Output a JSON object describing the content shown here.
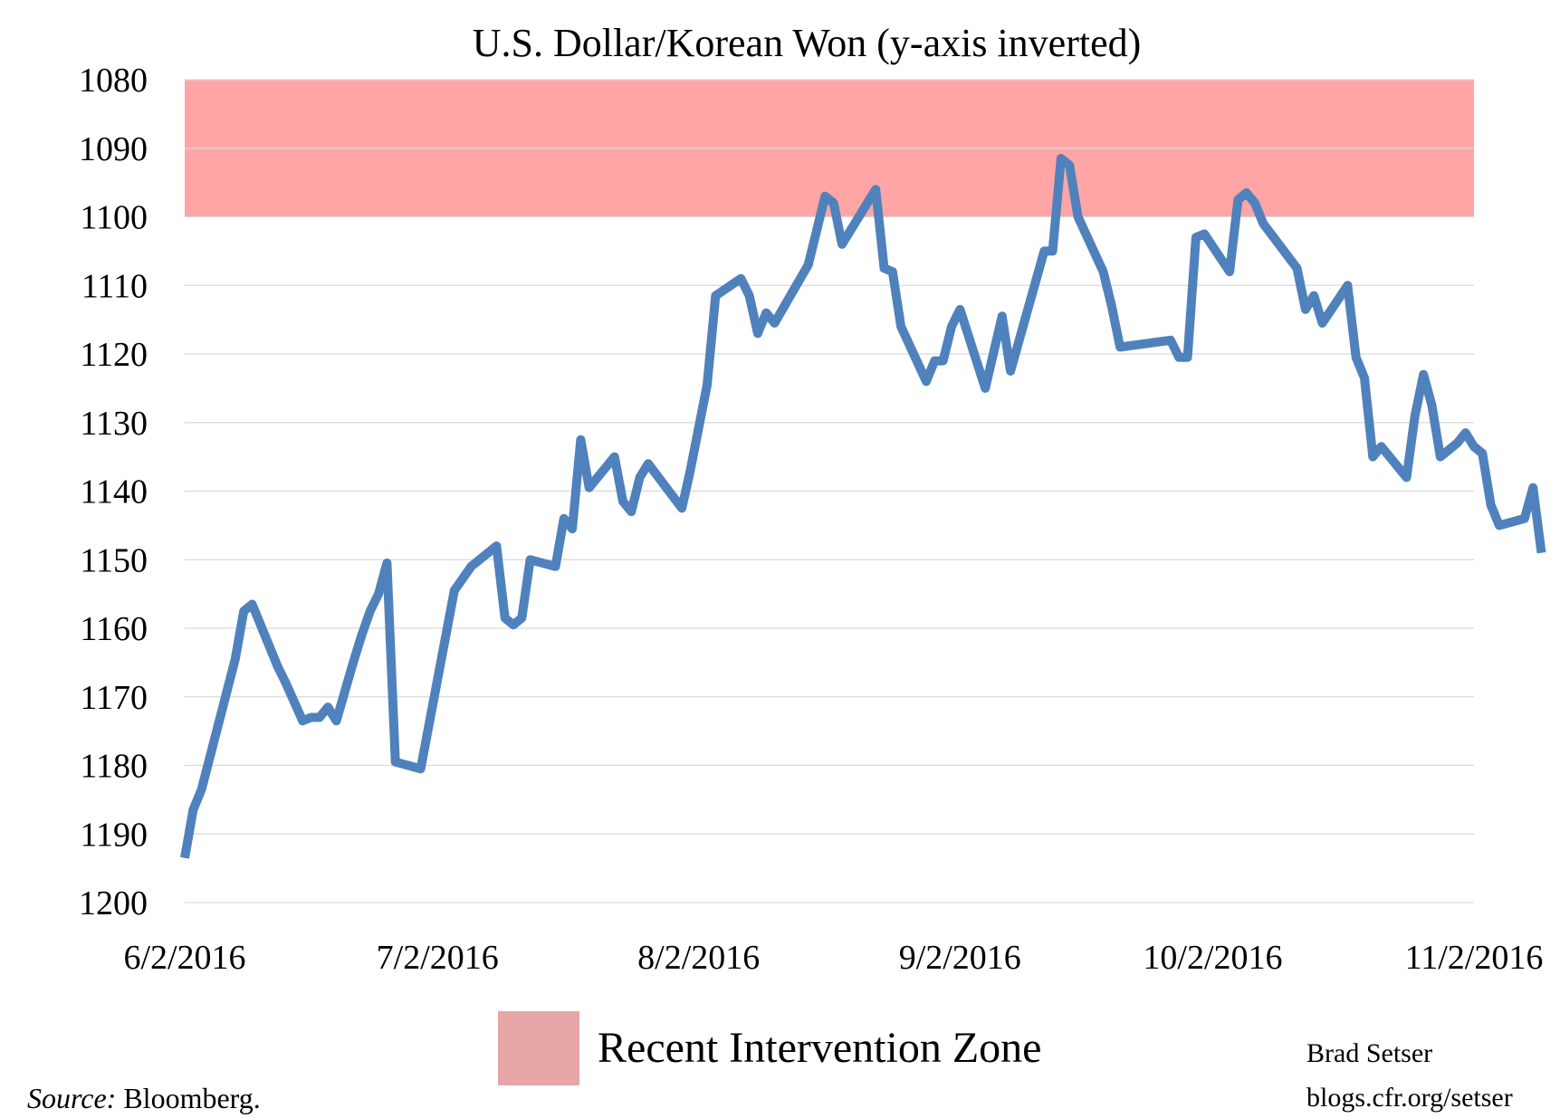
{
  "chart_data": {
    "type": "line",
    "title": "U.S. Dollar/Korean Won (y-axis inverted)",
    "xlabel": "",
    "ylabel": "",
    "y_inverted": true,
    "ylim": [
      1080,
      1200
    ],
    "yticks": [
      1080,
      1090,
      1100,
      1110,
      1120,
      1130,
      1140,
      1150,
      1160,
      1170,
      1180,
      1190,
      1200
    ],
    "xlim": [
      "2016-06-02",
      "2016-11-02"
    ],
    "xticks": [
      {
        "date": "2016-06-02",
        "label": "6/2/2016"
      },
      {
        "date": "2016-07-02",
        "label": "7/2/2016"
      },
      {
        "date": "2016-08-02",
        "label": "8/2/2016"
      },
      {
        "date": "2016-09-02",
        "label": "9/2/2016"
      },
      {
        "date": "2016-10-02",
        "label": "10/2/2016"
      },
      {
        "date": "2016-11-02",
        "label": "11/2/2016"
      }
    ],
    "grid": true,
    "band": {
      "name": "Recent Intervention Zone",
      "from": 1080,
      "to": 1100,
      "color": "#ff9999"
    },
    "series": [
      {
        "color": "#4f81bd",
        "points": [
          [
            "2016-06-02",
            1193.5
          ],
          [
            "2016-06-03",
            1186.5
          ],
          [
            "2016-06-04",
            1183.5
          ],
          [
            "2016-06-08",
            1164.5
          ],
          [
            "2016-06-09",
            1157.5
          ],
          [
            "2016-06-10",
            1156.5
          ],
          [
            "2016-06-13",
            1165.5
          ],
          [
            "2016-06-14",
            1168.0
          ],
          [
            "2016-06-16",
            1173.5
          ],
          [
            "2016-06-17",
            1173.0
          ],
          [
            "2016-06-18",
            1173.0
          ],
          [
            "2016-06-19",
            1171.5
          ],
          [
            "2016-06-20",
            1173.5
          ],
          [
            "2016-06-22",
            1165.0
          ],
          [
            "2016-06-23",
            1161.0
          ],
          [
            "2016-06-24",
            1157.5
          ],
          [
            "2016-06-25",
            1155.0
          ],
          [
            "2016-06-26",
            1150.5
          ],
          [
            "2016-06-27",
            1179.5
          ],
          [
            "2016-06-30",
            1180.5
          ],
          [
            "2016-07-04",
            1154.5
          ],
          [
            "2016-07-06",
            1151.0
          ],
          [
            "2016-07-09",
            1148.0
          ],
          [
            "2016-07-10",
            1158.5
          ],
          [
            "2016-07-11",
            1159.5
          ],
          [
            "2016-07-12",
            1158.5
          ],
          [
            "2016-07-13",
            1150.0
          ],
          [
            "2016-07-16",
            1151.0
          ],
          [
            "2016-07-17",
            1144.0
          ],
          [
            "2016-07-18",
            1145.5
          ],
          [
            "2016-07-19",
            1132.5
          ],
          [
            "2016-07-20",
            1139.5
          ],
          [
            "2016-07-23",
            1135.0
          ],
          [
            "2016-07-24",
            1141.5
          ],
          [
            "2016-07-25",
            1143.0
          ],
          [
            "2016-07-26",
            1138.0
          ],
          [
            "2016-07-27",
            1136.0
          ],
          [
            "2016-07-31",
            1142.5
          ],
          [
            "2016-08-01",
            1137.0
          ],
          [
            "2016-08-03",
            1124.5
          ],
          [
            "2016-08-04",
            1111.5
          ],
          [
            "2016-08-07",
            1109.0
          ],
          [
            "2016-08-08",
            1111.5
          ],
          [
            "2016-08-09",
            1117.0
          ],
          [
            "2016-08-10",
            1114.0
          ],
          [
            "2016-08-11",
            1115.5
          ],
          [
            "2016-08-15",
            1107.0
          ],
          [
            "2016-08-17",
            1097.0
          ],
          [
            "2016-08-18",
            1098.0
          ],
          [
            "2016-08-19",
            1104.0
          ],
          [
            "2016-08-23",
            1096.0
          ],
          [
            "2016-08-24",
            1107.5
          ],
          [
            "2016-08-25",
            1108.0
          ],
          [
            "2016-08-26",
            1116.0
          ],
          [
            "2016-08-29",
            1124.0
          ],
          [
            "2016-08-30",
            1121.0
          ],
          [
            "2016-08-31",
            1121.0
          ],
          [
            "2016-09-01",
            1116.0
          ],
          [
            "2016-09-02",
            1113.5
          ],
          [
            "2016-09-05",
            1125.0
          ],
          [
            "2016-09-07",
            1114.5
          ],
          [
            "2016-09-08",
            1122.5
          ],
          [
            "2016-09-12",
            1105.0
          ],
          [
            "2016-09-13",
            1105.0
          ],
          [
            "2016-09-14",
            1091.5
          ],
          [
            "2016-09-15",
            1092.5
          ],
          [
            "2016-09-16",
            1100.0
          ],
          [
            "2016-09-19",
            1108.0
          ],
          [
            "2016-09-20",
            1113.0
          ],
          [
            "2016-09-21",
            1119.0
          ],
          [
            "2016-09-27",
            1118.0
          ],
          [
            "2016-09-28",
            1120.5
          ],
          [
            "2016-09-29",
            1120.5
          ],
          [
            "2016-09-30",
            1103.0
          ],
          [
            "2016-10-01",
            1102.5
          ],
          [
            "2016-10-04",
            1108.0
          ],
          [
            "2016-10-05",
            1097.5
          ],
          [
            "2016-10-06",
            1096.5
          ],
          [
            "2016-10-07",
            1098.0
          ],
          [
            "2016-10-08",
            1101.0
          ],
          [
            "2016-10-12",
            1107.5
          ],
          [
            "2016-10-13",
            1113.5
          ],
          [
            "2016-10-14",
            1111.5
          ],
          [
            "2016-10-15",
            1115.5
          ],
          [
            "2016-10-18",
            1110.0
          ],
          [
            "2016-10-19",
            1120.5
          ],
          [
            "2016-10-20",
            1123.5
          ],
          [
            "2016-10-21",
            1135.0
          ],
          [
            "2016-10-22",
            1133.5
          ],
          [
            "2016-10-25",
            1138.0
          ],
          [
            "2016-10-26",
            1129.0
          ],
          [
            "2016-10-27",
            1123.0
          ],
          [
            "2016-10-28",
            1127.5
          ],
          [
            "2016-10-29",
            1135.0
          ],
          [
            "2016-10-31",
            1133.0
          ],
          [
            "2016-11-01",
            1131.5
          ],
          [
            "2016-11-02",
            1133.5
          ],
          [
            "2016-11-03",
            1134.5
          ],
          [
            "2016-11-04",
            1142.0
          ],
          [
            "2016-11-05",
            1145.0
          ],
          [
            "2016-11-08",
            1144.0
          ],
          [
            "2016-11-09",
            1139.5
          ],
          [
            "2016-11-10",
            1149.0
          ]
        ]
      }
    ]
  },
  "legend": {
    "label": "Recent Intervention Zone",
    "color": "#e6a6a6"
  },
  "credit": {
    "author": "Brad Setser",
    "site": "blogs.cfr.org/setser"
  },
  "source": {
    "prefix": "Source:",
    "text": " Bloomberg."
  }
}
